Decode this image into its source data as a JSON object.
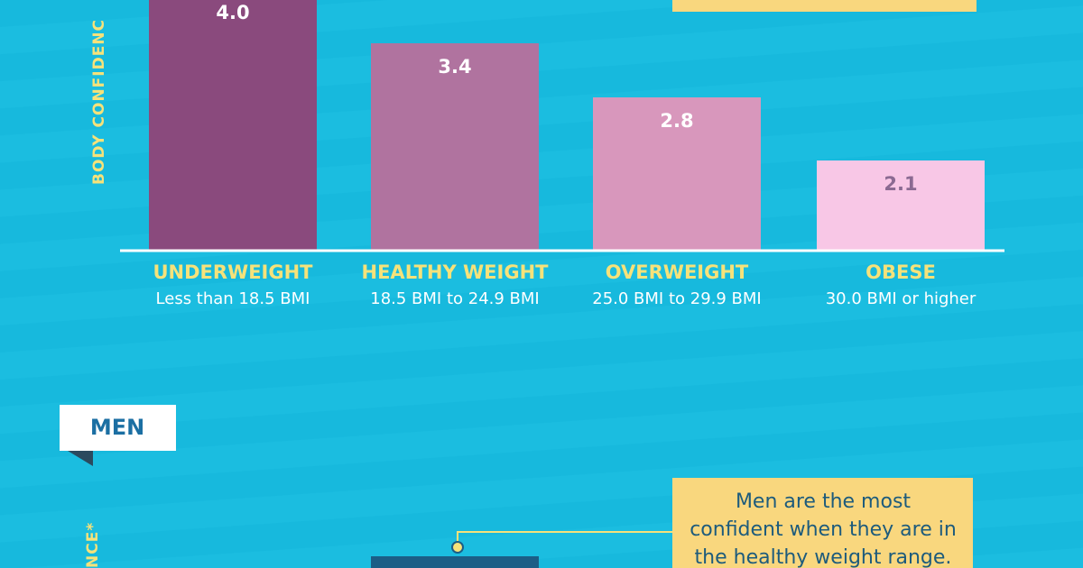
{
  "chart_data": {
    "type": "bar",
    "y_label": "BODY CONFIDENC",
    "categories": [
      "UNDERWEIGHT",
      "HEALTHY WEIGHT",
      "OVERWEIGHT",
      "OBESE"
    ],
    "subcategories": [
      "Less than 18.5 BMI",
      "18.5 BMI to 24.9 BMI",
      "25.0 BMI to 29.9 BMI",
      "30.0 BMI or higher"
    ],
    "values": [
      4.0,
      3.4,
      2.8,
      2.1
    ],
    "value_labels": [
      "4.0",
      "3.4",
      "2.8",
      "2.1"
    ],
    "colors": [
      "#8a4a7d",
      "#b0739f",
      "#d897bc",
      "#f8c7e6"
    ],
    "value_label_colors": [
      "#ffffff",
      "#ffffff",
      "#ffffff",
      "#8b6a92"
    ],
    "ylim": [
      1.1,
      4.0
    ]
  },
  "men": {
    "tab": "MEN",
    "y_label": "NCE*",
    "callout": [
      "Men are the most",
      "confident when they are in",
      "the healthy weight range."
    ]
  }
}
